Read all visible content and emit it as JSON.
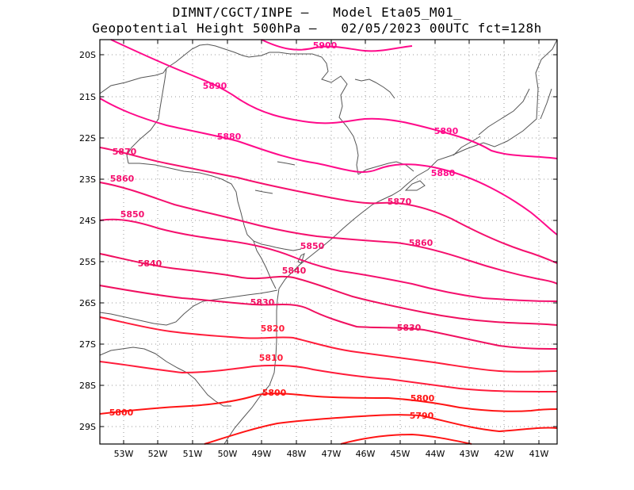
{
  "header": {
    "line1": "DIMNT/CGCT/INPE –   Model Eta05_M01_",
    "line2": "Geopotential Height 500hPa –   02/05/2023 00UTC fct=128h"
  },
  "axes": {
    "lat_labels": [
      "20S",
      "21S",
      "22S",
      "23S",
      "24S",
      "25S",
      "26S",
      "27S",
      "28S",
      "29S"
    ],
    "lon_labels": [
      "53W",
      "52W",
      "51W",
      "50W",
      "49W",
      "48W",
      "47W",
      "46W",
      "45W",
      "44W",
      "43W",
      "42W",
      "41W"
    ]
  },
  "colors": {
    "frame": "#000000",
    "grid": "#9a9a9a",
    "coast": "#555555",
    "high": "#ff0a8a",
    "mid": "#f01060",
    "low": "#ff1414"
  },
  "contour_labels": [
    "5900",
    "5890",
    "5890",
    "5880",
    "5880",
    "5870",
    "5870",
    "5860",
    "5860",
    "5850",
    "5850",
    "5840",
    "5840",
    "5830",
    "5830",
    "5820",
    "5810",
    "5800",
    "5800",
    "5800",
    "5790"
  ]
}
